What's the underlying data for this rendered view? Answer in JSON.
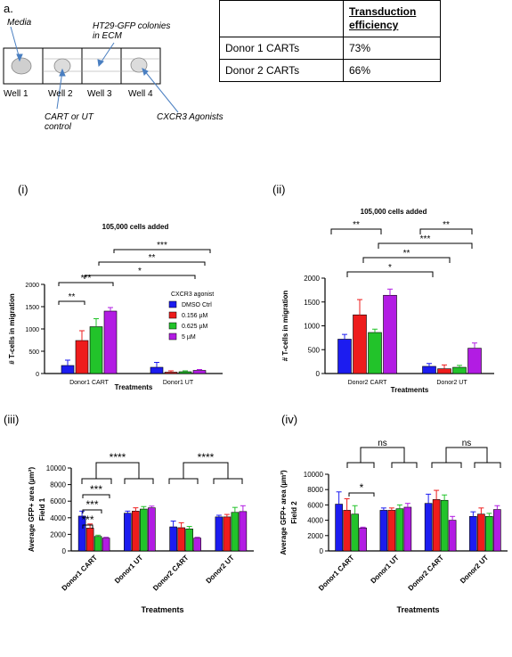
{
  "panel_a": {
    "label": "a.",
    "media_label": "Media",
    "colonies_label": "HT29-GFP colonies in ECM",
    "cart_label": "CART or UT control",
    "agonist_label": "CXCR3 Agonists",
    "wells": [
      "Well 1",
      "Well 2",
      "Well 3",
      "Well 4"
    ]
  },
  "table": {
    "header": "Transduction efficiency",
    "rows": [
      {
        "label": "Donor 1 CARTs",
        "value": "73%"
      },
      {
        "label": "Donor 2 CARTs",
        "value": "66%"
      }
    ]
  },
  "colors": {
    "blue": "#1c1cf0",
    "red": "#ee1c1c",
    "green": "#22c32a",
    "purple": "#b21ce3"
  },
  "chart_data": [
    {
      "panel": "(i)",
      "type": "bar",
      "title": "105,000 cells added",
      "xlabel": "Treatments",
      "ylabel": "# T-cells in migration",
      "ylim": [
        0,
        2000
      ],
      "yticks": [
        "0",
        "500",
        "1000",
        "1500",
        "2000"
      ],
      "categories": [
        "Donor1 CART",
        "Donor1 UT"
      ],
      "legend_title": "CXCR3 agonist",
      "legend_position": "right",
      "series": [
        {
          "name": "DMSO Ctrl",
          "color": "#1c1cf0",
          "values": [
            180,
            140
          ],
          "errors": [
            120,
            110
          ]
        },
        {
          "name": "0.156 µM",
          "color": "#ee1c1c",
          "values": [
            740,
            30
          ],
          "errors": [
            220,
            30
          ]
        },
        {
          "name": "0.625 µM",
          "color": "#22c32a",
          "values": [
            1050,
            40
          ],
          "errors": [
            180,
            20
          ]
        },
        {
          "name": "5 µM",
          "color": "#b21ce3",
          "values": [
            1400,
            70
          ],
          "errors": [
            80,
            20
          ]
        }
      ],
      "annotations": [
        "**",
        "***",
        "*",
        "**",
        "***"
      ]
    },
    {
      "panel": "(ii)",
      "type": "bar",
      "title": "105,000 cells added",
      "xlabel": "Treatments",
      "ylabel": "# T-cells in migration",
      "ylim": [
        0,
        2000
      ],
      "yticks": [
        "0",
        "500",
        "1000",
        "1500",
        "2000"
      ],
      "categories": [
        "Donor2 CART",
        "Donor2 UT"
      ],
      "series": [
        {
          "values": [
            720,
            150
          ],
          "errors": [
            100,
            60
          ],
          "color": "#1c1cf0"
        },
        {
          "values": [
            1230,
            100
          ],
          "errors": [
            320,
            80
          ],
          "color": "#ee1c1c"
        },
        {
          "values": [
            860,
            130
          ],
          "errors": [
            70,
            40
          ],
          "color": "#22c32a"
        },
        {
          "values": [
            1640,
            530
          ],
          "errors": [
            130,
            110
          ],
          "color": "#b21ce3"
        }
      ],
      "annotations": [
        "**",
        "**",
        "***",
        "**",
        "*"
      ]
    },
    {
      "panel": "(iii)",
      "type": "bar",
      "xlabel": "Treatments",
      "ylabel": "Average GFP+ area (µm²) Field 1",
      "ylim": [
        0,
        10000
      ],
      "yticks": [
        "0",
        "2000",
        "4000",
        "6000",
        "8000",
        "10000"
      ],
      "categories": [
        "Donor1 CART",
        "Donor1 UT",
        "Donor2 CART",
        "Donor2 UT"
      ],
      "series": [
        {
          "color": "#1c1cf0",
          "values": [
            4200,
            4550,
            2900,
            4100
          ],
          "errors": [
            600,
            250,
            700,
            200
          ]
        },
        {
          "color": "#ee1c1c",
          "values": [
            2750,
            4800,
            2800,
            4100
          ],
          "errors": [
            500,
            400,
            600,
            300
          ]
        },
        {
          "color": "#22c32a",
          "values": [
            1750,
            5050,
            2650,
            4650
          ],
          "errors": [
            150,
            300,
            300,
            600
          ]
        },
        {
          "color": "#b21ce3",
          "values": [
            1550,
            5200,
            1550,
            4750
          ],
          "errors": [
            100,
            200,
            100,
            700
          ]
        }
      ],
      "annotations": [
        "****",
        "****",
        "***",
        "***",
        "***"
      ]
    },
    {
      "panel": "(iv)",
      "type": "bar",
      "xlabel": "Treatments",
      "ylabel": "Average GFP+ area (µm²) Field 2",
      "ylim": [
        0,
        10000
      ],
      "yticks": [
        "0",
        "2000",
        "4000",
        "6000",
        "8000",
        "10000"
      ],
      "categories": [
        "Donor1 CART",
        "Donor1 UT",
        "Donor2 CART",
        "Donor2 UT"
      ],
      "series": [
        {
          "color": "#1c1cf0",
          "values": [
            6100,
            5300,
            6200,
            4500
          ],
          "errors": [
            1600,
            300,
            1200,
            600
          ]
        },
        {
          "color": "#ee1c1c",
          "values": [
            5300,
            5300,
            6700,
            4800
          ],
          "errors": [
            1500,
            300,
            1200,
            800
          ]
        },
        {
          "color": "#22c32a",
          "values": [
            4800,
            5500,
            6600,
            4500
          ],
          "errors": [
            1100,
            500,
            700,
            400
          ]
        },
        {
          "color": "#b21ce3",
          "values": [
            3000,
            5700,
            4000,
            5400
          ],
          "errors": [
            100,
            500,
            500,
            500
          ]
        }
      ],
      "annotations": [
        "ns",
        "ns",
        "*"
      ]
    }
  ]
}
